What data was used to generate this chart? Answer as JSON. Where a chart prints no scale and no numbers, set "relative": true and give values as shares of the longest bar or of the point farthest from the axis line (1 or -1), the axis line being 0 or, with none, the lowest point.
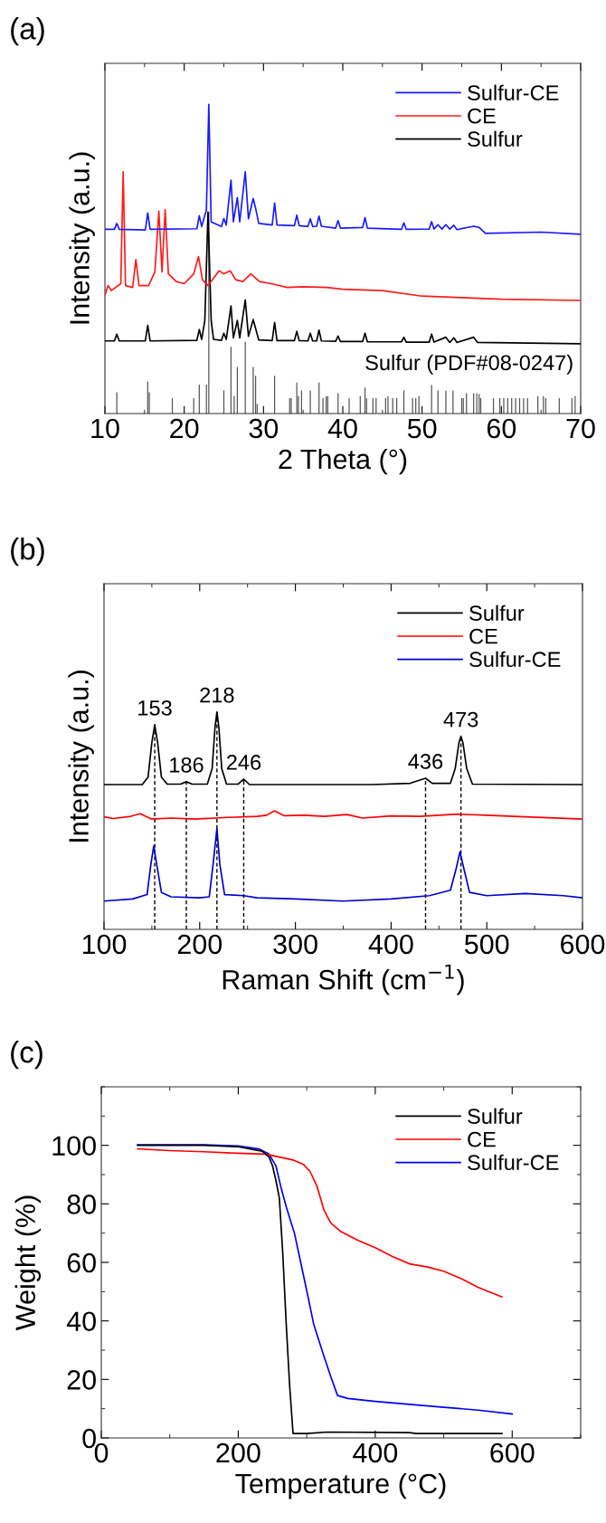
{
  "chart_data": [
    {
      "type": "line",
      "title": "(a)",
      "xlabel": "2 Theta (°)",
      "ylabel": "Intensity (a.u.)",
      "relative": true,
      "xlim": [
        10,
        70
      ],
      "xticks": [
        10,
        20,
        30,
        40,
        50,
        60,
        70
      ],
      "legend": "top right",
      "series": [
        {
          "name": "Sulfur-CE",
          "color": "#1a1aff",
          "x": [
            10,
            11.2,
            11.5,
            11.8,
            15.1,
            15.4,
            15.7,
            21.6,
            21.9,
            22.2,
            22.8,
            23.1,
            23.4,
            24.7,
            25.0,
            25.3,
            25.9,
            26.2,
            26.7,
            27.0,
            27.7,
            28.1,
            28.7,
            29.0,
            29.4,
            31.1,
            31.4,
            31.7,
            33.9,
            34.2,
            34.5,
            35.6,
            35.9,
            36.2,
            36.7,
            37.0,
            37.3,
            39.1,
            39.4,
            39.7,
            42.5,
            42.8,
            43.1,
            47.4,
            47.7,
            48.0,
            50.9,
            51.2,
            51.5,
            52.0,
            52.5,
            53.0,
            53.5,
            54.0,
            54.4,
            56.5,
            57.2,
            58.0,
            65.0,
            70
          ],
          "values": [
            0.596,
            0.596,
            0.615,
            0.596,
            0.594,
            0.649,
            0.596,
            0.598,
            0.64,
            0.605,
            0.659,
            1.0,
            0.62,
            0.605,
            0.631,
            0.61,
            0.755,
            0.62,
            0.699,
            0.62,
            0.782,
            0.63,
            0.696,
            0.665,
            0.615,
            0.61,
            0.681,
            0.61,
            0.608,
            0.642,
            0.608,
            0.605,
            0.63,
            0.605,
            0.606,
            0.639,
            0.606,
            0.6,
            0.624,
            0.6,
            0.602,
            0.634,
            0.6,
            0.596,
            0.617,
            0.596,
            0.597,
            0.621,
            0.597,
            0.611,
            0.597,
            0.611,
            0.597,
            0.609,
            0.595,
            0.606,
            0.602,
            0.583,
            0.587,
            0.58
          ]
        },
        {
          "name": "CE",
          "color": "#ff1a1a",
          "x": [
            10,
            10.4,
            10.8,
            12.0,
            12.3,
            12.6,
            13.5,
            13.9,
            14.3,
            15.5,
            16.3,
            16.8,
            17.2,
            17.6,
            18.0,
            19.0,
            20.0,
            21.2,
            21.8,
            22.3,
            23.0,
            24.4,
            25.0,
            25.8,
            26.5,
            27.4,
            28.4,
            29.5,
            31.0,
            33.0,
            35.0,
            38.0,
            40.0,
            45.0,
            50.0,
            55.0,
            60.0,
            70
          ],
          "values": [
            0.383,
            0.414,
            0.398,
            0.42,
            0.782,
            0.414,
            0.408,
            0.498,
            0.414,
            0.414,
            0.458,
            0.655,
            0.458,
            0.659,
            0.452,
            0.427,
            0.42,
            0.452,
            0.508,
            0.433,
            0.414,
            0.462,
            0.452,
            0.462,
            0.433,
            0.427,
            0.452,
            0.427,
            0.42,
            0.408,
            0.41,
            0.408,
            0.402,
            0.398,
            0.38,
            0.375,
            0.37,
            0.366
          ]
        },
        {
          "name": "Sulfur",
          "color": "#000000",
          "x": [
            10,
            11.2,
            11.5,
            11.8,
            15.1,
            15.4,
            15.7,
            21.6,
            21.9,
            22.2,
            22.6,
            23.0,
            23.4,
            23.7,
            24.7,
            25.0,
            25.3,
            25.9,
            26.2,
            26.7,
            27.0,
            27.7,
            28.1,
            28.7,
            29.0,
            29.4,
            31.1,
            31.4,
            31.7,
            33.9,
            34.2,
            34.5,
            35.6,
            35.9,
            36.2,
            36.7,
            37.0,
            37.3,
            39.1,
            39.4,
            39.7,
            42.5,
            42.8,
            43.1,
            47.4,
            47.7,
            48.0,
            50.9,
            51.2,
            51.5,
            53.0,
            53.5,
            54.0,
            54.4,
            56.5,
            57.0,
            70
          ],
          "values": [
            0.235,
            0.235,
            0.257,
            0.235,
            0.235,
            0.285,
            0.235,
            0.237,
            0.272,
            0.24,
            0.301,
            0.652,
            0.301,
            0.24,
            0.237,
            0.26,
            0.24,
            0.348,
            0.245,
            0.301,
            0.245,
            0.368,
            0.25,
            0.304,
            0.276,
            0.238,
            0.236,
            0.295,
            0.236,
            0.236,
            0.266,
            0.236,
            0.235,
            0.26,
            0.235,
            0.235,
            0.27,
            0.235,
            0.234,
            0.251,
            0.233,
            0.233,
            0.26,
            0.232,
            0.232,
            0.247,
            0.231,
            0.231,
            0.257,
            0.231,
            0.247,
            0.23,
            0.245,
            0.23,
            0.247,
            0.23,
            0.226
          ]
        },
        {
          "name": "Sulfur (PDF#08-0247)",
          "type": "bar",
          "color": "#555555",
          "x": [
            11.5,
            15.4,
            15.6,
            18.5,
            21.2,
            21.9,
            22.8,
            23.1,
            25.0,
            25.9,
            26.3,
            26.7,
            27.7,
            28.7,
            29.0,
            29.2,
            31.4,
            33.3,
            33.5,
            34.2,
            34.4,
            34.8,
            35.9,
            37.0,
            37.5,
            37.9,
            38.1,
            39.4,
            40.8,
            42.2,
            42.8,
            43.0,
            43.8,
            44.2,
            45.4,
            45.7,
            46.3,
            46.8,
            47.7,
            48.8,
            49.2,
            49.6,
            51.2,
            52.0,
            53.0,
            53.9,
            55.0,
            55.2,
            55.6,
            56.5,
            56.9,
            57.2,
            57.4,
            59.0,
            59.8,
            60.3,
            60.8,
            61.3,
            61.8,
            62.3,
            62.8,
            63.3,
            64.6,
            65.3,
            65.6,
            67.3,
            68.9,
            69.3
          ],
          "values": [
            0.069,
            0.103,
            0.069,
            0.05,
            0.05,
            0.094,
            0.094,
            0.652,
            0.075,
            0.216,
            0.056,
            0.151,
            0.232,
            0.151,
            0.122,
            0.031,
            0.122,
            0.05,
            0.05,
            0.1,
            0.056,
            0.075,
            0.075,
            0.1,
            0.05,
            0.056,
            0.056,
            0.066,
            0.05,
            0.056,
            0.084,
            0.05,
            0.05,
            0.05,
            0.05,
            0.056,
            0.05,
            0.05,
            0.075,
            0.05,
            0.05,
            0.056,
            0.092,
            0.075,
            0.075,
            0.075,
            0.05,
            0.05,
            0.066,
            0.066,
            0.066,
            0.063,
            0.05,
            0.05,
            0.05,
            0.05,
            0.05,
            0.05,
            0.05,
            0.05,
            0.05,
            0.05,
            0.056,
            0.056,
            0.05,
            0.05,
            0.05,
            0.056
          ]
        }
      ]
    },
    {
      "type": "line",
      "title": "(b)",
      "xlabel": "Raman Shift (cm$^{−1}$)",
      "ylabel": "Intensity (a.u.)",
      "relative": true,
      "xlim": [
        100,
        600
      ],
      "xticks": [
        100,
        200,
        300,
        400,
        500,
        600
      ],
      "legend": "top right",
      "series": [
        {
          "name": "Sulfur",
          "color": "#000000",
          "x": [
            100,
            140,
            146,
            150,
            153,
            156,
            160,
            166,
            180,
            186,
            192,
            208,
            213,
            216,
            218,
            220,
            223,
            228,
            240,
            246,
            252,
            380,
            420,
            436,
            443,
            462,
            467,
            471,
            473,
            475,
            479,
            485,
            600
          ],
          "values": [
            0.666,
            0.666,
            0.7,
            0.86,
            0.941,
            0.86,
            0.7,
            0.668,
            0.668,
            0.679,
            0.668,
            0.668,
            0.74,
            0.93,
            1.0,
            0.93,
            0.74,
            0.668,
            0.668,
            0.691,
            0.666,
            0.666,
            0.672,
            0.695,
            0.672,
            0.672,
            0.74,
            0.86,
            0.888,
            0.86,
            0.74,
            0.668,
            0.666
          ]
        },
        {
          "name": "CE",
          "color": "#ff0000",
          "x": [
            100,
            110,
            128,
            138,
            150,
            170,
            195,
            230,
            260,
            270,
            278,
            288,
            310,
            330,
            354,
            370,
            400,
            430,
            470,
            500,
            540,
            600
          ],
          "values": [
            0.518,
            0.51,
            0.52,
            0.532,
            0.507,
            0.512,
            0.507,
            0.515,
            0.52,
            0.525,
            0.545,
            0.523,
            0.525,
            0.52,
            0.528,
            0.512,
            0.522,
            0.52,
            0.53,
            0.525,
            0.518,
            0.507
          ]
        },
        {
          "name": "Sulfur-CE",
          "color": "#0000cc",
          "x": [
            100,
            130,
            145,
            149,
            152,
            155,
            160,
            170,
            200,
            210,
            214,
            218,
            221,
            226,
            246,
            260,
            300,
            350,
            400,
            440,
            462,
            468,
            472,
            476,
            482,
            500,
            540,
            580,
            600
          ],
          "values": [
            0.13,
            0.14,
            0.16,
            0.3,
            0.384,
            0.3,
            0.17,
            0.15,
            0.145,
            0.15,
            0.3,
            0.464,
            0.3,
            0.16,
            0.155,
            0.145,
            0.14,
            0.13,
            0.14,
            0.155,
            0.18,
            0.28,
            0.357,
            0.28,
            0.17,
            0.155,
            0.165,
            0.155,
            0.145
          ]
        }
      ],
      "ref_lines": [
        {
          "axis": "x",
          "value": 153,
          "label": "153",
          "color": "#000000",
          "line_style": "dashed"
        },
        {
          "axis": "x",
          "value": 186,
          "label": "186",
          "color": "#000000",
          "line_style": "dashed"
        },
        {
          "axis": "x",
          "value": 218,
          "label": "218",
          "color": "#000000",
          "line_style": "dashed"
        },
        {
          "axis": "x",
          "value": 246,
          "label": "246",
          "color": "#000000",
          "line_style": "dashed"
        },
        {
          "axis": "x",
          "value": 436,
          "label": "436",
          "color": "#000000",
          "line_style": "dashed"
        },
        {
          "axis": "x",
          "value": 473,
          "label": "473",
          "color": "#000000",
          "line_style": "dashed"
        }
      ]
    },
    {
      "type": "line",
      "title": "(c)",
      "xlabel": "Temperature (°C)",
      "ylabel": "Weight (%)",
      "xlim": [
        0,
        700
      ],
      "xticks": [
        0,
        200,
        400,
        600
      ],
      "ylim": [
        0,
        120
      ],
      "yticks": [
        0,
        20,
        40,
        60,
        80,
        100
      ],
      "legend": "top right",
      "series": [
        {
          "name": "Sulfur",
          "color": "#000000",
          "x": [
            53,
            150,
            200,
            235,
            245,
            250,
            255,
            260,
            265,
            270,
            275,
            280,
            300,
            330,
            450,
            460,
            585
          ],
          "values": [
            100,
            100,
            99.5,
            98,
            96,
            93,
            88,
            82,
            63,
            39,
            18,
            1.5,
            1.5,
            2,
            1.8,
            1.5,
            1.5
          ]
        },
        {
          "name": "CE",
          "color": "#ff0000",
          "x": [
            53,
            100,
            150,
            200,
            240,
            260,
            280,
            295,
            305,
            315,
            325,
            335,
            350,
            375,
            400,
            425,
            450,
            475,
            500,
            525,
            550,
            585
          ],
          "values": [
            98.8,
            98.2,
            97.8,
            97.3,
            97,
            96,
            95,
            93.5,
            91,
            86,
            78,
            73.5,
            70.5,
            67.5,
            65,
            62,
            59.5,
            58.5,
            57,
            54.5,
            51.5,
            48.2
          ]
        },
        {
          "name": "Sulfur-CE",
          "color": "#0000ff",
          "x": [
            53,
            150,
            200,
            230,
            245,
            255,
            262,
            270,
            282,
            293,
            303,
            310,
            325,
            335,
            345,
            360,
            400,
            450,
            500,
            550,
            600
          ],
          "values": [
            100.2,
            100.2,
            99.8,
            98.8,
            97,
            93,
            86,
            79,
            70,
            58,
            47,
            39,
            28,
            21,
            14.5,
            13.5,
            12.5,
            11.5,
            10.5,
            9.5,
            8.2
          ]
        }
      ]
    }
  ]
}
